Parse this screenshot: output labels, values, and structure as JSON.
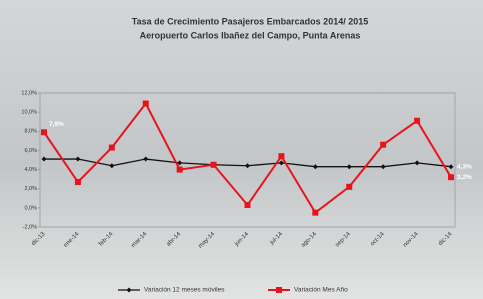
{
  "chart_data": {
    "type": "line",
    "title": "Tasa de Crecimiento Pasajeros Embarcados 2014/ 2015",
    "subtitle": "Aeropuerto Carlos Ibañez del Campo, Punta Arenas",
    "categories": [
      "dic-13",
      "ene-14",
      "feb-14",
      "mar-14",
      "abr-14",
      "may-14",
      "jun-14",
      "jul-14",
      "ago-14",
      "sep-14",
      "oct-14",
      "nov-14",
      "dic-14"
    ],
    "series": [
      {
        "name": "Variación 12 meses móviles",
        "color": "#111111",
        "values": [
          5.1,
          5.1,
          4.4,
          5.1,
          4.7,
          4.5,
          4.4,
          4.7,
          4.3,
          4.3,
          4.3,
          4.7,
          4.3
        ],
        "value_labels": [
          null,
          null,
          null,
          null,
          null,
          null,
          null,
          null,
          null,
          null,
          null,
          null,
          "4,3%"
        ]
      },
      {
        "name": "Variación Mes Año",
        "color": "#e8141b",
        "values": [
          7.9,
          2.7,
          6.3,
          10.9,
          4.0,
          4.5,
          0.3,
          5.4,
          -0.5,
          2.2,
          6.6,
          9.1,
          3.2
        ],
        "value_labels": [
          "7,9%",
          null,
          null,
          null,
          null,
          null,
          null,
          null,
          null,
          null,
          null,
          null,
          "3,2%"
        ]
      }
    ],
    "ylim": [
      -2,
      12
    ],
    "yticks": [
      {
        "value": -2,
        "label": "-2,0%"
      },
      {
        "value": 0,
        "label": "0,0%"
      },
      {
        "value": 2,
        "label": "2,0%"
      },
      {
        "value": 4,
        "label": "4,0%"
      },
      {
        "value": 6,
        "label": "6,0%"
      },
      {
        "value": 8,
        "label": "8,0%"
      },
      {
        "value": 10,
        "label": "10,0%"
      },
      {
        "value": 12,
        "label": "12,0%"
      }
    ],
    "grid": false
  }
}
